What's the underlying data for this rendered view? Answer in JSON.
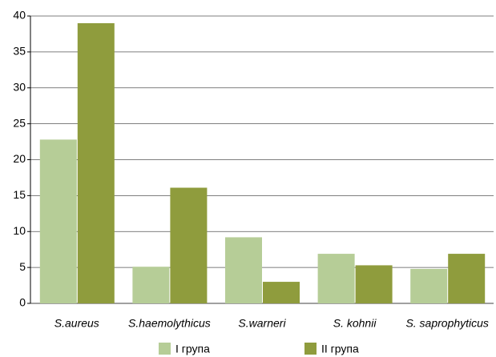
{
  "chart_data": {
    "type": "bar",
    "categories": [
      "S.aureus",
      "S.haemolythicus",
      "S.warneri",
      "S. kohnii",
      "S. saprophyticus"
    ],
    "series": [
      {
        "name": "I група",
        "color": "#b6cd97",
        "values": [
          22.8,
          5.1,
          9.2,
          6.9,
          4.8
        ]
      },
      {
        "name": "II група",
        "color": "#8f9c3d",
        "values": [
          39,
          16.1,
          3,
          5.3,
          6.9
        ]
      }
    ],
    "ylim": [
      0,
      40
    ],
    "yticks": [
      0,
      5,
      10,
      15,
      20,
      25,
      30,
      35,
      40
    ],
    "grid": true,
    "legend": "bottom"
  }
}
